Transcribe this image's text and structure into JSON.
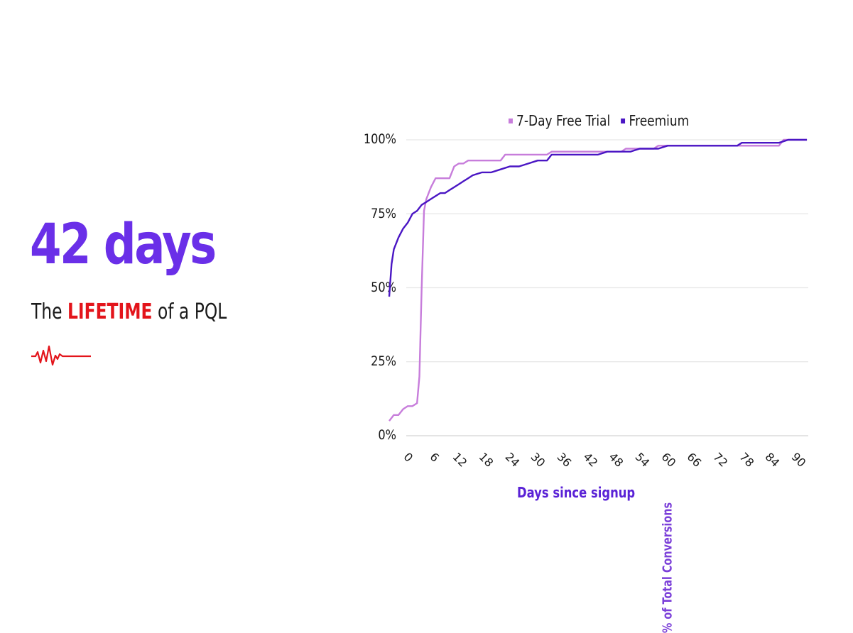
{
  "headline": {
    "value": "42 days",
    "subtitle_prefix": "The ",
    "subtitle_highlight": "LIFETIME",
    "subtitle_suffix": " of a PQL",
    "icon": "heartbeat-pulse-icon",
    "colors": {
      "headline": "#6a2fe8",
      "highlight": "#e3141b",
      "text": "#1a1a1a"
    }
  },
  "chart_data": {
    "type": "line",
    "title": "",
    "xlabel": "Days since signup",
    "ylabel": "% of Total Conversions",
    "xlim": [
      0,
      90
    ],
    "ylim": [
      0,
      100
    ],
    "x_ticks": [
      "0",
      "6",
      "12",
      "18",
      "24",
      "30",
      "36",
      "42",
      "48",
      "54",
      "60",
      "66",
      "72",
      "78",
      "84",
      "90"
    ],
    "y_ticks": [
      "0%",
      "25%",
      "50%",
      "75%",
      "100%"
    ],
    "grid": "horizontal",
    "legend_position": "top",
    "series": [
      {
        "name": "7-Day Free Trial",
        "color": "#c77ddb",
        "points": [
          [
            0,
            5
          ],
          [
            1,
            7
          ],
          [
            2,
            7
          ],
          [
            3,
            9
          ],
          [
            4,
            10
          ],
          [
            5,
            10
          ],
          [
            6,
            11
          ],
          [
            6.5,
            20
          ],
          [
            7,
            50
          ],
          [
            7.5,
            76
          ],
          [
            8,
            80
          ],
          [
            9,
            84
          ],
          [
            10,
            87
          ],
          [
            11,
            87
          ],
          [
            12,
            87
          ],
          [
            13,
            87
          ],
          [
            14,
            91
          ],
          [
            15,
            92
          ],
          [
            16,
            92
          ],
          [
            17,
            93
          ],
          [
            18,
            93
          ],
          [
            20,
            93
          ],
          [
            24,
            93
          ],
          [
            25,
            95
          ],
          [
            30,
            95
          ],
          [
            34,
            95
          ],
          [
            35,
            96
          ],
          [
            40,
            96
          ],
          [
            45,
            96
          ],
          [
            50,
            96
          ],
          [
            51,
            97
          ],
          [
            55,
            97
          ],
          [
            57,
            97
          ],
          [
            58,
            98
          ],
          [
            70,
            98
          ],
          [
            76,
            98
          ],
          [
            84,
            98
          ],
          [
            85,
            100
          ],
          [
            90,
            100
          ]
        ]
      },
      {
        "name": "Freemium",
        "color": "#4a16c4",
        "points": [
          [
            0,
            47
          ],
          [
            0.5,
            58
          ],
          [
            1,
            63
          ],
          [
            2,
            67
          ],
          [
            3,
            70
          ],
          [
            4,
            72
          ],
          [
            5,
            75
          ],
          [
            6,
            76
          ],
          [
            7,
            78
          ],
          [
            8,
            79
          ],
          [
            9,
            80
          ],
          [
            10,
            81
          ],
          [
            11,
            82
          ],
          [
            12,
            82
          ],
          [
            13,
            83
          ],
          [
            14,
            84
          ],
          [
            15,
            85
          ],
          [
            16,
            86
          ],
          [
            17,
            87
          ],
          [
            18,
            88
          ],
          [
            20,
            89
          ],
          [
            22,
            89
          ],
          [
            24,
            90
          ],
          [
            26,
            91
          ],
          [
            28,
            91
          ],
          [
            30,
            92
          ],
          [
            32,
            93
          ],
          [
            34,
            93
          ],
          [
            35,
            95
          ],
          [
            40,
            95
          ],
          [
            45,
            95
          ],
          [
            47,
            96
          ],
          [
            52,
            96
          ],
          [
            54,
            97
          ],
          [
            58,
            97
          ],
          [
            60,
            98
          ],
          [
            70,
            98
          ],
          [
            75,
            98
          ],
          [
            76,
            99
          ],
          [
            84,
            99
          ],
          [
            86,
            100
          ],
          [
            90,
            100
          ]
        ]
      }
    ]
  },
  "legend": {
    "items": [
      {
        "label": "7-Day Free Trial",
        "color": "#c77ddb"
      },
      {
        "label": "Freemium",
        "color": "#4a16c4"
      }
    ]
  },
  "axes": {
    "y_label": "% of Total Conversions",
    "x_label": "Days since signup",
    "y_ticks": [
      "100%",
      "75%",
      "50%",
      "25%",
      "0%"
    ],
    "x_ticks": [
      "0",
      "6",
      "12",
      "18",
      "24",
      "30",
      "36",
      "42",
      "48",
      "54",
      "60",
      "66",
      "72",
      "78",
      "84",
      "90"
    ]
  }
}
